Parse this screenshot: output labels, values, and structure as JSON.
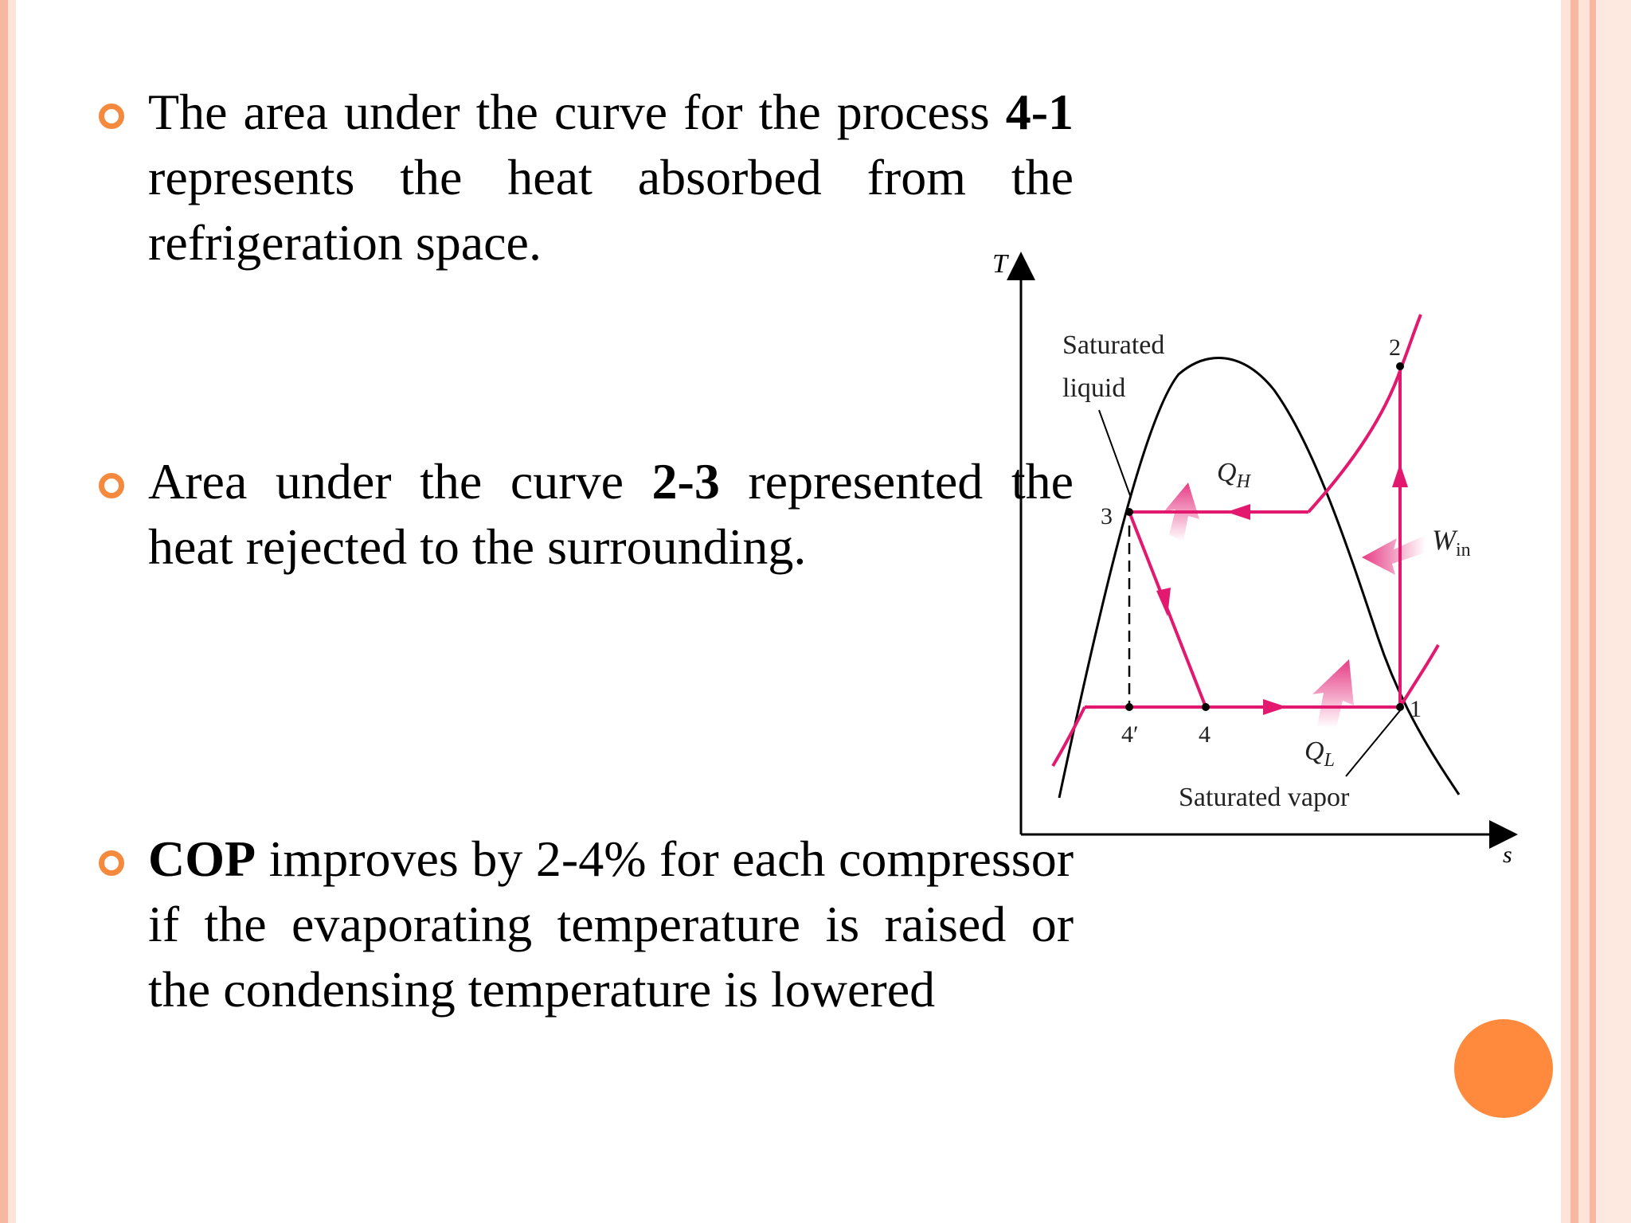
{
  "colors": {
    "accent": "#f58a3f",
    "process": "#e2196f",
    "circle": "#ff8a3d",
    "stripe_light": "#fde3d8",
    "stripe_mid": "#f7b7a0"
  },
  "bullets": [
    {
      "parts": [
        {
          "text": "The area under the curve for the process ",
          "bold": false
        },
        {
          "text": "4-1",
          "bold": true
        },
        {
          "text": " represents the heat absorbed from the refrigeration space.",
          "bold": false
        }
      ]
    },
    {
      "parts": [
        {
          "text": "Area under the curve ",
          "bold": false
        },
        {
          "text": "2-3",
          "bold": true
        },
        {
          "text": " represented the heat rejected to the surrounding.",
          "bold": false
        }
      ]
    },
    {
      "parts": [
        {
          "text": "COP",
          "bold": true
        },
        {
          "text": " improves by 2-4% for each compressor if the evaporating temperature is raised or the condensing temperature is lowered",
          "bold": false
        }
      ]
    }
  ],
  "diagram": {
    "y_axis_label": "T",
    "x_axis_label": "s",
    "saturated_liquid_label_line1": "Saturated",
    "saturated_liquid_label_line2": "liquid",
    "saturated_vapor_label": "Saturated vapor",
    "q_h_main": "Q",
    "q_h_sub": "H",
    "q_l_main": "Q",
    "q_l_sub": "L",
    "w_main": "W",
    "w_sub": "in",
    "point_1": "1",
    "point_2": "2",
    "point_3": "3",
    "point_4": "4",
    "point_4_prime": "4′"
  }
}
